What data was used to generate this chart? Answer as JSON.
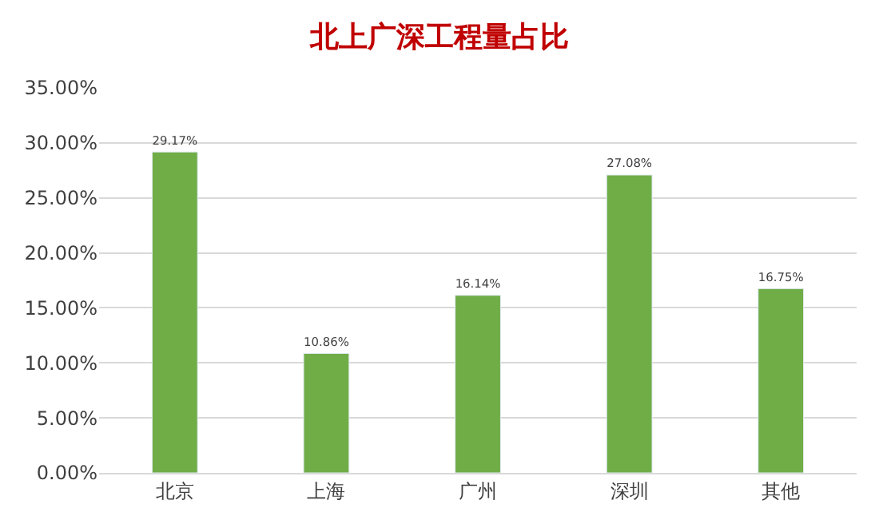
{
  "chart_data": {
    "type": "bar",
    "title": "北上广深工程量占比",
    "categories": [
      "北京",
      "上海",
      "广州",
      "深圳",
      "其他"
    ],
    "values": [
      29.17,
      10.86,
      16.14,
      27.08,
      16.75
    ],
    "value_labels": [
      "29.17%",
      "10.86%",
      "16.14%",
      "27.08%",
      "16.75%"
    ],
    "color": "#70ad47",
    "ylim": [
      0,
      35
    ],
    "yticks": [
      {
        "value": 0,
        "label": "0.00%"
      },
      {
        "value": 5,
        "label": "5.00%"
      },
      {
        "value": 10,
        "label": "10.00%"
      },
      {
        "value": 15,
        "label": "15.00%"
      },
      {
        "value": 20,
        "label": "20.00%"
      },
      {
        "value": 25,
        "label": "25.00%"
      },
      {
        "value": 30,
        "label": "30.00%"
      },
      {
        "value": 35,
        "label": "35.00%"
      }
    ],
    "grid": "y"
  }
}
